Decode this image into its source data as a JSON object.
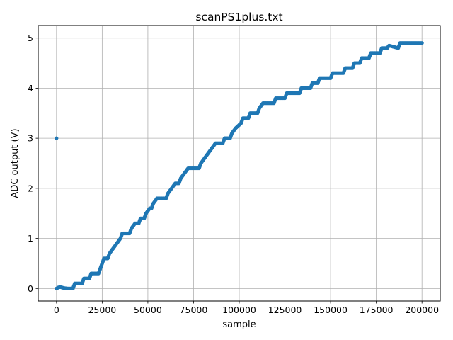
{
  "chart_data": {
    "type": "scatter",
    "title": "scanPS1plus.txt",
    "xlabel": "sample",
    "ylabel": "ADC output (V)",
    "xlim": [
      -10000,
      210000
    ],
    "ylim": [
      -0.25,
      5.25
    ],
    "xticks": [
      0,
      25000,
      50000,
      75000,
      100000,
      125000,
      150000,
      175000,
      200000
    ],
    "yticks": [
      0,
      1,
      2,
      3,
      4,
      5
    ],
    "grid": true,
    "marker_color": "#1f77b4",
    "series": [
      {
        "points": [
          [
            0,
            3.0
          ],
          [
            0,
            0.0
          ],
          [
            1000,
            0.02
          ],
          [
            2000,
            0.03
          ],
          [
            3000,
            0.02
          ],
          [
            4000,
            0.01
          ],
          [
            6000,
            0.0
          ],
          [
            9000,
            0.0
          ],
          [
            10000,
            0.1
          ],
          [
            14000,
            0.1
          ],
          [
            15000,
            0.2
          ],
          [
            18000,
            0.2
          ],
          [
            19000,
            0.3
          ],
          [
            23000,
            0.3
          ],
          [
            24000,
            0.4
          ],
          [
            25000,
            0.5
          ],
          [
            26000,
            0.6
          ],
          [
            28000,
            0.6
          ],
          [
            29000,
            0.7
          ],
          [
            31000,
            0.8
          ],
          [
            33000,
            0.9
          ],
          [
            35000,
            1.0
          ],
          [
            36000,
            1.1
          ],
          [
            40000,
            1.1
          ],
          [
            41000,
            1.2
          ],
          [
            43000,
            1.3
          ],
          [
            45000,
            1.3
          ],
          [
            46000,
            1.4
          ],
          [
            48000,
            1.4
          ],
          [
            49000,
            1.5
          ],
          [
            51000,
            1.6
          ],
          [
            52000,
            1.6
          ],
          [
            53000,
            1.7
          ],
          [
            55000,
            1.8
          ],
          [
            56000,
            1.8
          ],
          [
            60000,
            1.8
          ],
          [
            61000,
            1.9
          ],
          [
            63000,
            2.0
          ],
          [
            65000,
            2.1
          ],
          [
            67000,
            2.1
          ],
          [
            68000,
            2.2
          ],
          [
            70000,
            2.3
          ],
          [
            72000,
            2.4
          ],
          [
            78000,
            2.4
          ],
          [
            79000,
            2.5
          ],
          [
            81000,
            2.6
          ],
          [
            83000,
            2.7
          ],
          [
            85000,
            2.8
          ],
          [
            87000,
            2.9
          ],
          [
            91000,
            2.9
          ],
          [
            92000,
            3.0
          ],
          [
            95000,
            3.0
          ],
          [
            96000,
            3.1
          ],
          [
            98000,
            3.2
          ],
          [
            101000,
            3.3
          ],
          [
            102000,
            3.4
          ],
          [
            105000,
            3.4
          ],
          [
            106000,
            3.5
          ],
          [
            110000,
            3.5
          ],
          [
            111000,
            3.6
          ],
          [
            113000,
            3.7
          ],
          [
            119000,
            3.7
          ],
          [
            120000,
            3.8
          ],
          [
            125000,
            3.8
          ],
          [
            126000,
            3.9
          ],
          [
            133000,
            3.9
          ],
          [
            134000,
            4.0
          ],
          [
            139000,
            4.0
          ],
          [
            140000,
            4.1
          ],
          [
            143000,
            4.1
          ],
          [
            144000,
            4.2
          ],
          [
            150000,
            4.2
          ],
          [
            151000,
            4.3
          ],
          [
            157000,
            4.3
          ],
          [
            158000,
            4.4
          ],
          [
            162000,
            4.4
          ],
          [
            163000,
            4.5
          ],
          [
            166000,
            4.5
          ],
          [
            167000,
            4.6
          ],
          [
            171000,
            4.6
          ],
          [
            172000,
            4.7
          ],
          [
            177000,
            4.7
          ],
          [
            178000,
            4.8
          ],
          [
            181000,
            4.8
          ],
          [
            182000,
            4.85
          ],
          [
            187000,
            4.8
          ],
          [
            188000,
            4.9
          ],
          [
            200000,
            4.9
          ]
        ]
      }
    ]
  }
}
